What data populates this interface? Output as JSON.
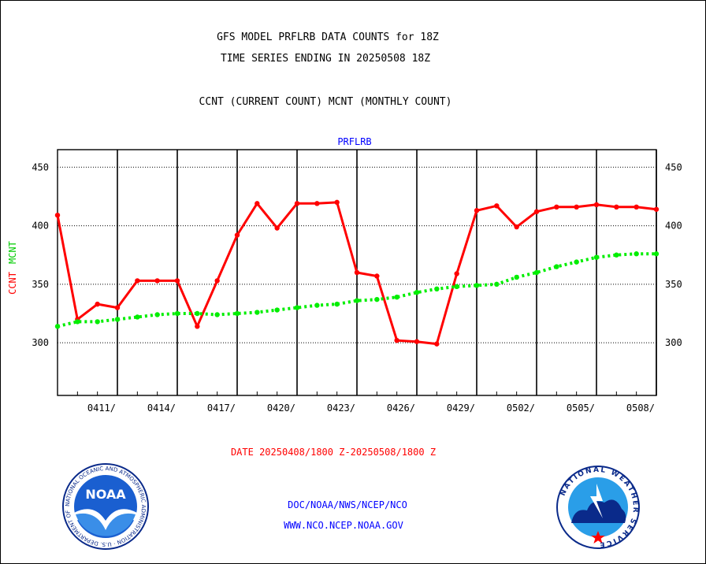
{
  "header": {
    "line1": "GFS MODEL PRFLRB DATA COUNTS for 18Z",
    "line2": "TIME SERIES ENDING IN 20250508 18Z",
    "line3": "CCNT (CURRENT COUNT) MCNT (MONTHLY COUNT)"
  },
  "footer": {
    "date_range": "DATE 20250408/1800 Z-20250508/1800 Z",
    "org_line": "DOC/NOAA/NWS/NCEP/NCO",
    "url_line": "WWW.NCO.NCEP.NOAA.GOV"
  },
  "logos": {
    "noaa": "NOAA",
    "noaa_ring": "NATIONAL OCEANIC AND ATMOSPHERIC ADMINISTRATION · U.S. DEPARTMENT OF COMMERCE",
    "nws_ring": "NATIONAL WEATHER SERVICE"
  },
  "colors": {
    "ccnt": "#ff0000",
    "mcnt": "#00ee00",
    "title": "#0000ff"
  },
  "chart_data": {
    "type": "line",
    "title": "PRFLRB",
    "ylabel_left": [
      "CCNT",
      "MCNT"
    ],
    "ylim": [
      255,
      465
    ],
    "yticks": [
      300,
      350,
      400,
      450
    ],
    "x_range_days": [
      "2025-04-08",
      "2025-05-08"
    ],
    "xtick_labels": [
      "0411/",
      "0414/",
      "0417/",
      "0420/",
      "0423/",
      "0426/",
      "0429/",
      "0502/",
      "0505/",
      "0508/"
    ],
    "grid": true,
    "series": [
      {
        "name": "CCNT",
        "color": "#ff0000",
        "values": [
          [
            "2025-04-08",
            409
          ],
          [
            "2025-04-09",
            320
          ],
          [
            "2025-04-10",
            333
          ],
          [
            "2025-04-11",
            330
          ],
          [
            "2025-04-12",
            353
          ],
          [
            "2025-04-13",
            353
          ],
          [
            "2025-04-14",
            353
          ],
          [
            "2025-04-15",
            314
          ],
          [
            "2025-04-16",
            353
          ],
          [
            "2025-04-17",
            392
          ],
          [
            "2025-04-18",
            419
          ],
          [
            "2025-04-19",
            398
          ],
          [
            "2025-04-20",
            419
          ],
          [
            "2025-04-21",
            419
          ],
          [
            "2025-04-22",
            420
          ],
          [
            "2025-04-23",
            360
          ],
          [
            "2025-04-24",
            357
          ],
          [
            "2025-04-25",
            302
          ],
          [
            "2025-04-26",
            301
          ],
          [
            "2025-04-27",
            299
          ],
          [
            "2025-04-28",
            359
          ],
          [
            "2025-04-29",
            413
          ],
          [
            "2025-04-30",
            417
          ],
          [
            "2025-05-01",
            399
          ],
          [
            "2025-05-02",
            412
          ],
          [
            "2025-05-03",
            416
          ],
          [
            "2025-05-04",
            416
          ],
          [
            "2025-05-05",
            418
          ],
          [
            "2025-05-06",
            416
          ],
          [
            "2025-05-07",
            416
          ],
          [
            "2025-05-08",
            414
          ]
        ]
      },
      {
        "name": "MCNT",
        "color": "#00ee00",
        "values": [
          [
            "2025-04-08",
            314
          ],
          [
            "2025-04-09",
            318
          ],
          [
            "2025-04-10",
            318
          ],
          [
            "2025-04-11",
            320
          ],
          [
            "2025-04-12",
            322
          ],
          [
            "2025-04-13",
            324
          ],
          [
            "2025-04-14",
            325
          ],
          [
            "2025-04-15",
            325
          ],
          [
            "2025-04-16",
            324
          ],
          [
            "2025-04-17",
            325
          ],
          [
            "2025-04-18",
            326
          ],
          [
            "2025-04-19",
            328
          ],
          [
            "2025-04-20",
            330
          ],
          [
            "2025-04-21",
            332
          ],
          [
            "2025-04-22",
            333
          ],
          [
            "2025-04-23",
            336
          ],
          [
            "2025-04-24",
            337
          ],
          [
            "2025-04-25",
            339
          ],
          [
            "2025-04-26",
            343
          ],
          [
            "2025-04-27",
            346
          ],
          [
            "2025-04-28",
            348
          ],
          [
            "2025-04-29",
            349
          ],
          [
            "2025-04-30",
            350
          ],
          [
            "2025-05-01",
            356
          ],
          [
            "2025-05-02",
            360
          ],
          [
            "2025-05-03",
            365
          ],
          [
            "2025-05-04",
            369
          ],
          [
            "2025-05-05",
            373
          ],
          [
            "2025-05-06",
            375
          ],
          [
            "2025-05-07",
            376
          ],
          [
            "2025-05-08",
            376
          ]
        ]
      }
    ]
  }
}
